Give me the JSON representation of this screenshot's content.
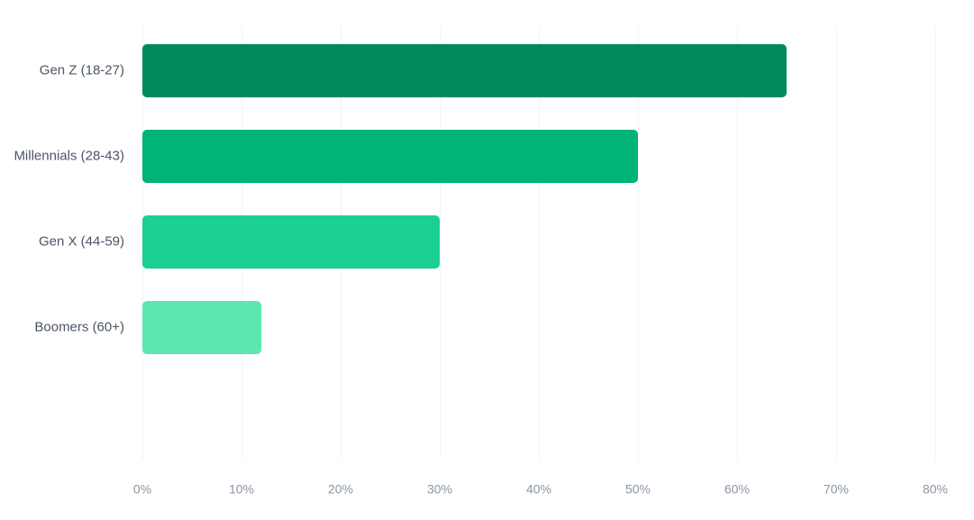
{
  "chart_data": {
    "type": "bar",
    "orientation": "horizontal",
    "categories": [
      "Gen Z (18-27)",
      "Millennials (28-43)",
      "Gen X (44-59)",
      "Boomers (60+)"
    ],
    "values": [
      65,
      50,
      30,
      12
    ],
    "colors": [
      "#028a5f",
      "#00b377",
      "#1ad093",
      "#5ce6b0"
    ],
    "xlim": [
      0,
      80
    ],
    "x_ticks": [
      0,
      10,
      20,
      30,
      40,
      50,
      60,
      70,
      80
    ],
    "x_tick_labels": [
      "0%",
      "10%",
      "20%",
      "30%",
      "40%",
      "50%",
      "60%",
      "70%",
      "80%"
    ],
    "grid": true,
    "title": "",
    "xlabel": "",
    "ylabel": ""
  }
}
